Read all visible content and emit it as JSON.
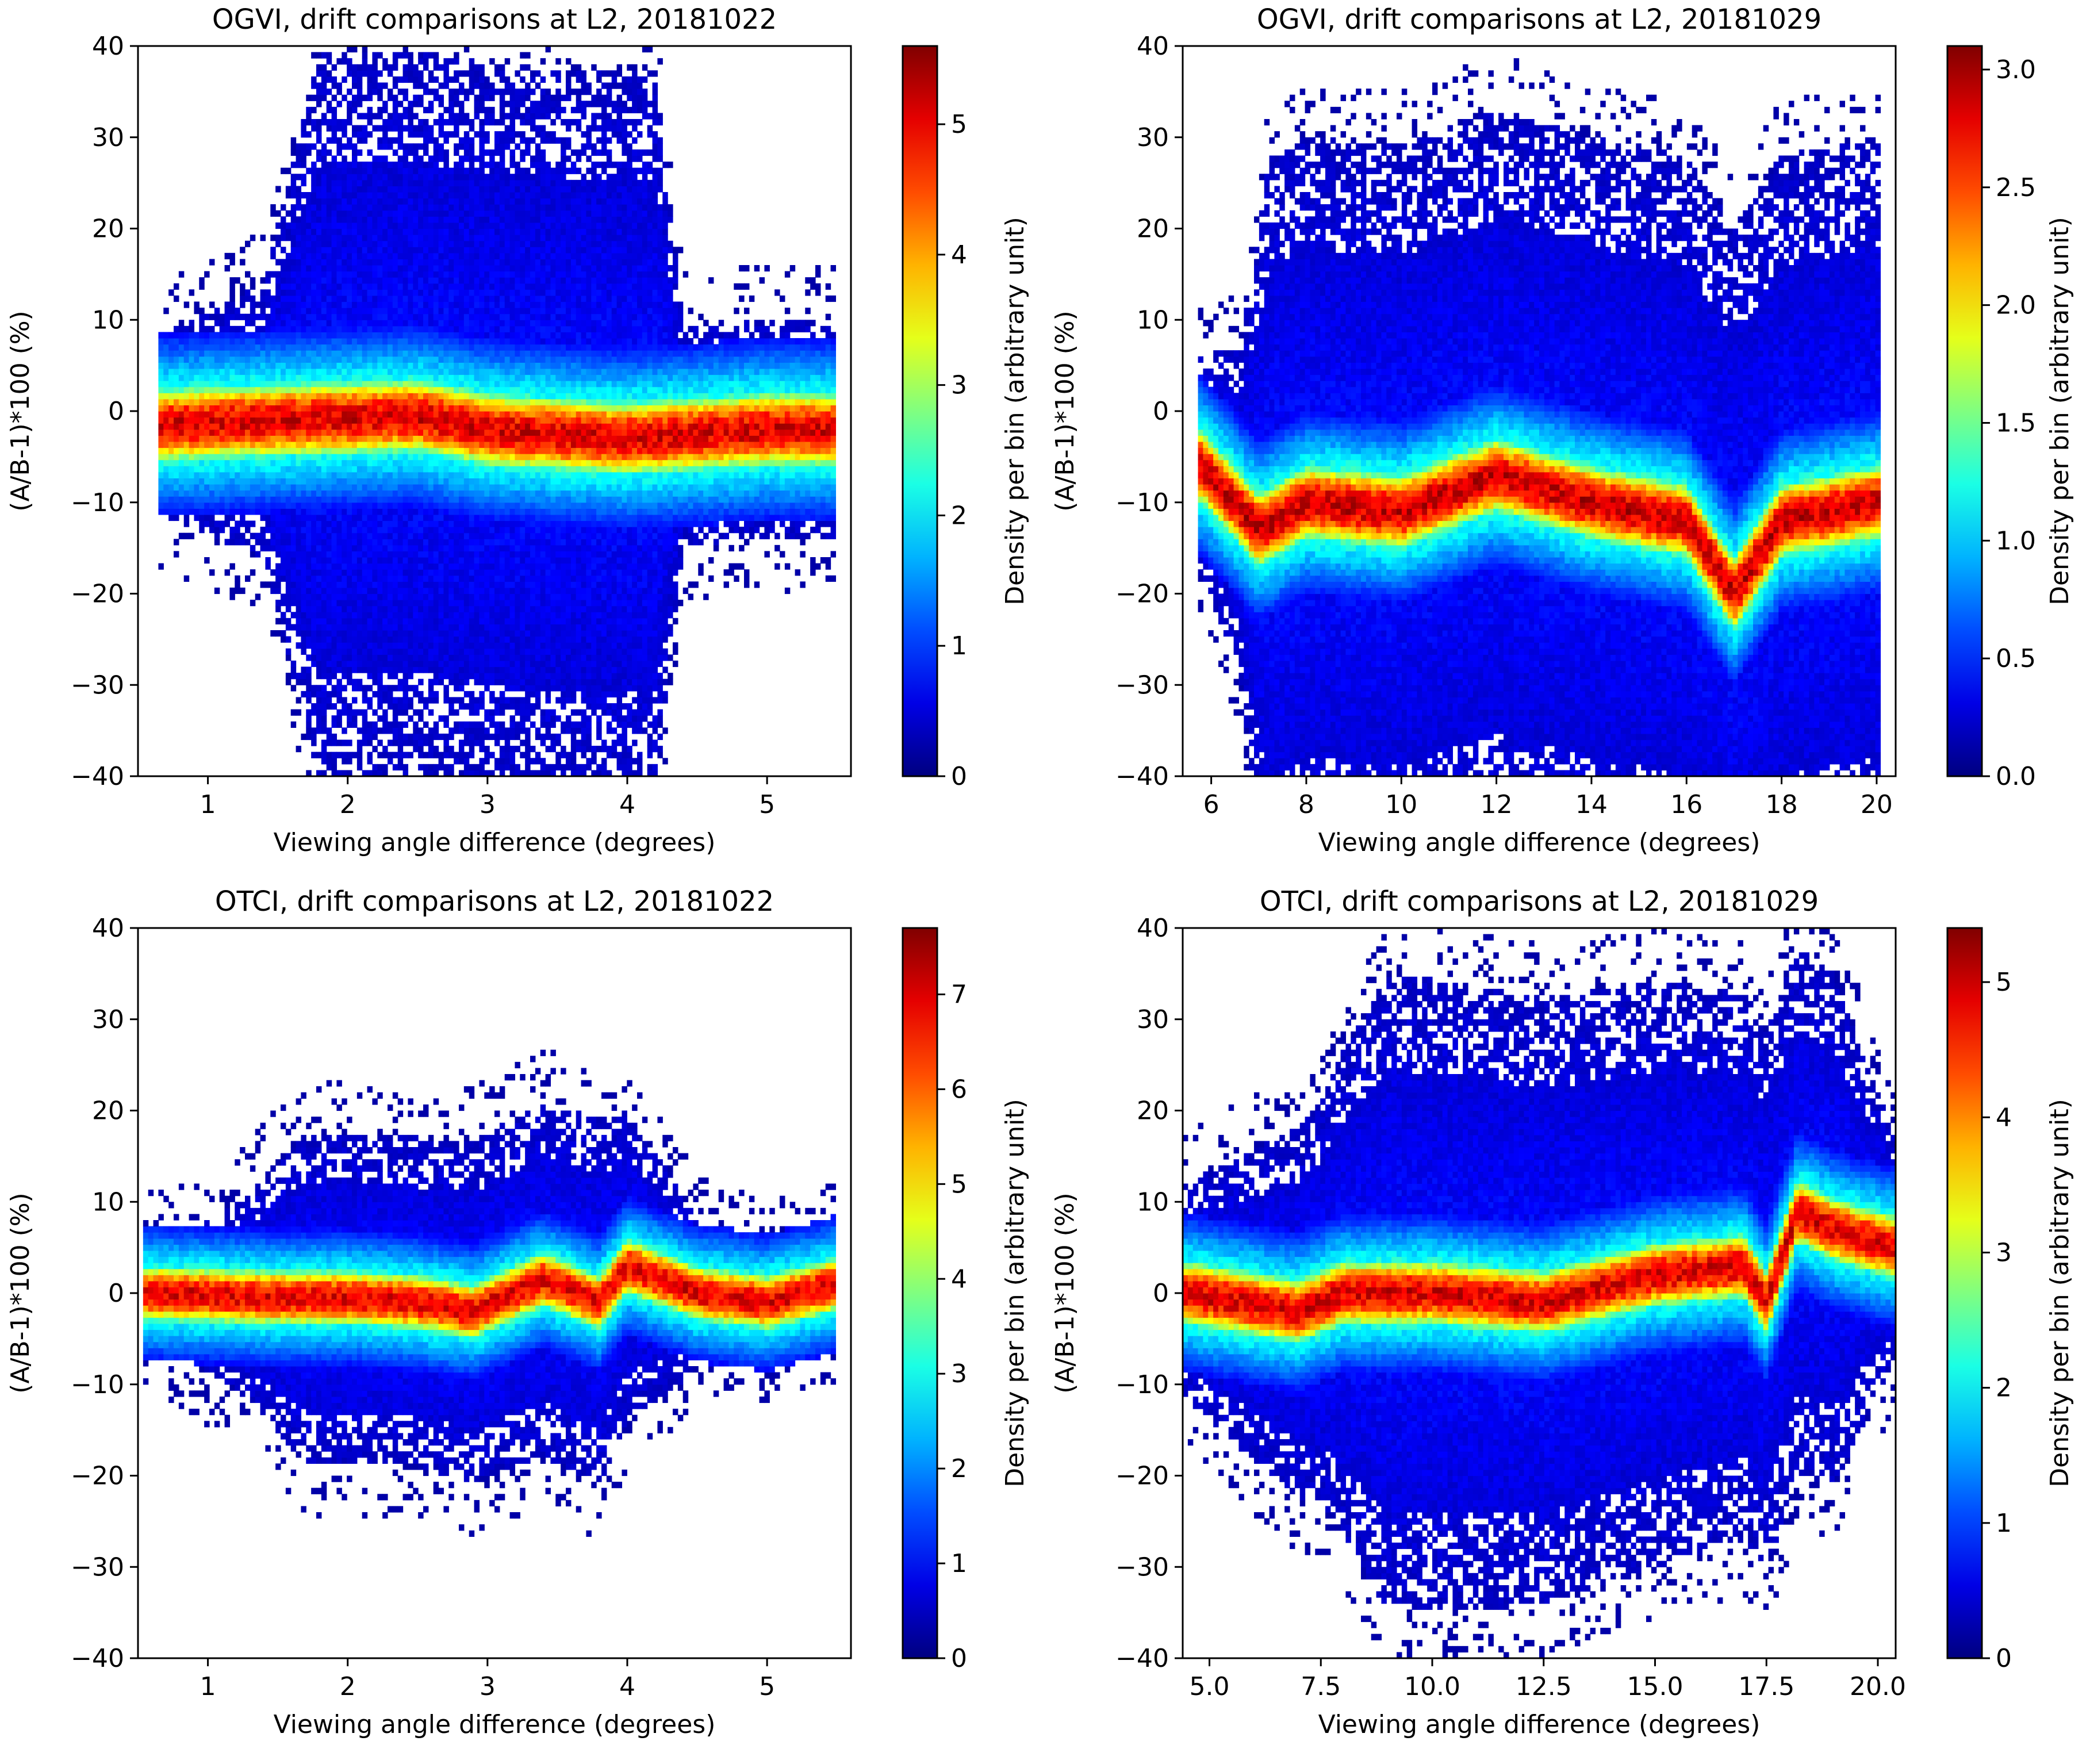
{
  "chart_data": [
    {
      "type": "heatmap",
      "title": "OGVI, drift comparisons at L2, 20181022",
      "xlabel": "Viewing angle difference (degrees)",
      "ylabel": "(A/B-1)*100 (%)",
      "colorbar_label": "Density per bin (arbitrary unit)",
      "xlim": [
        0.5,
        5.6
      ],
      "ylim": [
        -40,
        40
      ],
      "xticks": [
        "1",
        "2",
        "3",
        "4",
        "5"
      ],
      "xtick_values": [
        1,
        2,
        3,
        4,
        5
      ],
      "yticks": [
        "−40",
        "−30",
        "−20",
        "−10",
        "0",
        "10",
        "20",
        "30",
        "40"
      ],
      "ytick_values": [
        -40,
        -30,
        -20,
        -10,
        0,
        10,
        20,
        30,
        40
      ],
      "colorbar_range": [
        0,
        5.6
      ],
      "colorbar_ticks": [
        "0",
        "1",
        "2",
        "3",
        "4",
        "5"
      ],
      "colorbar_tick_values": [
        0,
        1,
        2,
        3,
        4,
        5
      ],
      "data_extent_x": [
        0.65,
        5.5
      ],
      "core_center": [
        {
          "x": 0.7,
          "y": -1.5
        },
        {
          "x": 1.5,
          "y": -1
        },
        {
          "x": 2.5,
          "y": -0.5
        },
        {
          "x": 3.0,
          "y": -2
        },
        {
          "x": 3.5,
          "y": -2.5
        },
        {
          "x": 4.0,
          "y": -3
        },
        {
          "x": 4.5,
          "y": -2.5
        },
        {
          "x": 5.0,
          "y": -2
        },
        {
          "x": 5.5,
          "y": -2
        }
      ],
      "core_halfwidth": 4,
      "peak_density": 5.5,
      "spread": [
        {
          "x": 0.7,
          "y": 10
        },
        {
          "x": 1.4,
          "y": 15
        },
        {
          "x": 1.8,
          "y": 40
        },
        {
          "x": 2.9,
          "y": 40
        },
        {
          "x": 4.2,
          "y": 40
        },
        {
          "x": 4.4,
          "y": 12
        },
        {
          "x": 5.5,
          "y": 12
        }
      ]
    },
    {
      "type": "heatmap",
      "title": "OGVI, drift comparisons at L2, 20181029",
      "xlabel": "Viewing angle difference (degrees)",
      "ylabel": "(A/B-1)*100 (%)",
      "colorbar_label": "Density per bin (arbitrary unit)",
      "xlim": [
        5.4,
        20.4
      ],
      "ylim": [
        -40,
        40
      ],
      "xticks": [
        "6",
        "8",
        "10",
        "12",
        "14",
        "16",
        "18",
        "20"
      ],
      "xtick_values": [
        6,
        8,
        10,
        12,
        14,
        16,
        18,
        20
      ],
      "yticks": [
        "−40",
        "−30",
        "−20",
        "−10",
        "0",
        "10",
        "20",
        "30",
        "40"
      ],
      "ytick_values": [
        -40,
        -30,
        -20,
        -10,
        0,
        10,
        20,
        30,
        40
      ],
      "colorbar_range": [
        0,
        3.1
      ],
      "colorbar_ticks": [
        "0.0",
        "0.5",
        "1.0",
        "1.5",
        "2.0",
        "2.5",
        "3.0"
      ],
      "colorbar_tick_values": [
        0,
        0.5,
        1.0,
        1.5,
        2.0,
        2.5,
        3.0
      ],
      "data_extent_x": [
        5.7,
        20.1
      ],
      "core_center": [
        {
          "x": 5.8,
          "y": -6
        },
        {
          "x": 7.0,
          "y": -13
        },
        {
          "x": 8.0,
          "y": -10
        },
        {
          "x": 10.0,
          "y": -11
        },
        {
          "x": 12.0,
          "y": -7
        },
        {
          "x": 14.0,
          "y": -10
        },
        {
          "x": 16.0,
          "y": -12
        },
        {
          "x": 17.0,
          "y": -20
        },
        {
          "x": 18.0,
          "y": -12
        },
        {
          "x": 20.0,
          "y": -10
        }
      ],
      "core_halfwidth": 4,
      "peak_density": 3.1,
      "spread": [
        {
          "x": 5.8,
          "y": 12
        },
        {
          "x": 6.6,
          "y": 18
        },
        {
          "x": 7.2,
          "y": 40
        },
        {
          "x": 9.0,
          "y": 40
        },
        {
          "x": 19.5,
          "y": 40
        },
        {
          "x": 20.1,
          "y": 40
        }
      ]
    },
    {
      "type": "heatmap",
      "title": "OTCI, drift comparisons at L2, 20181022",
      "xlabel": "Viewing angle difference (degrees)",
      "ylabel": "(A/B-1)*100 (%)",
      "colorbar_label": "Density per bin (arbitrary unit)",
      "xlim": [
        0.5,
        5.6
      ],
      "ylim": [
        -40,
        40
      ],
      "xticks": [
        "1",
        "2",
        "3",
        "4",
        "5"
      ],
      "xtick_values": [
        1,
        2,
        3,
        4,
        5
      ],
      "yticks": [
        "−40",
        "−30",
        "−20",
        "−10",
        "0",
        "10",
        "20",
        "30",
        "40"
      ],
      "ytick_values": [
        -40,
        -30,
        -20,
        -10,
        0,
        10,
        20,
        30,
        40
      ],
      "colorbar_range": [
        0,
        7.7
      ],
      "colorbar_ticks": [
        "0",
        "1",
        "2",
        "3",
        "4",
        "5",
        "6",
        "7"
      ],
      "colorbar_tick_values": [
        0,
        1,
        2,
        3,
        4,
        5,
        6,
        7
      ],
      "data_extent_x": [
        0.55,
        5.5
      ],
      "core_center": [
        {
          "x": 0.6,
          "y": 0
        },
        {
          "x": 1.5,
          "y": -0.5
        },
        {
          "x": 2.0,
          "y": -0.5
        },
        {
          "x": 2.5,
          "y": -1
        },
        {
          "x": 2.9,
          "y": -2
        },
        {
          "x": 3.4,
          "y": 1.5
        },
        {
          "x": 3.8,
          "y": -1
        },
        {
          "x": 4.0,
          "y": 3
        },
        {
          "x": 4.5,
          "y": 0
        },
        {
          "x": 5.0,
          "y": -1
        },
        {
          "x": 5.5,
          "y": 1
        }
      ],
      "core_halfwidth": 3,
      "peak_density": 7.5,
      "spread": [
        {
          "x": 0.6,
          "y": 5
        },
        {
          "x": 1.2,
          "y": 10
        },
        {
          "x": 1.7,
          "y": 18
        },
        {
          "x": 2.5,
          "y": 18
        },
        {
          "x": 3.8,
          "y": 20
        },
        {
          "x": 4.3,
          "y": 12
        },
        {
          "x": 4.6,
          "y": 6
        },
        {
          "x": 5.5,
          "y": 5
        }
      ]
    },
    {
      "type": "heatmap",
      "title": "OTCI, drift comparisons at L2, 20181029",
      "xlabel": "Viewing angle difference (degrees)",
      "ylabel": "(A/B-1)*100 (%)",
      "colorbar_label": "Density per bin (arbitrary unit)",
      "xlim": [
        4.4,
        20.4
      ],
      "ylim": [
        -40,
        40
      ],
      "xticks": [
        "5.0",
        "7.5",
        "10.0",
        "12.5",
        "15.0",
        "17.5",
        "20.0"
      ],
      "xtick_values": [
        5.0,
        7.5,
        10.0,
        12.5,
        15.0,
        17.5,
        20.0
      ],
      "yticks": [
        "−40",
        "−30",
        "−20",
        "−10",
        "0",
        "10",
        "20",
        "30",
        "40"
      ],
      "ytick_values": [
        -40,
        -30,
        -20,
        -10,
        0,
        10,
        20,
        30,
        40
      ],
      "colorbar_range": [
        0,
        5.4
      ],
      "colorbar_ticks": [
        "0",
        "1",
        "2",
        "3",
        "4",
        "5"
      ],
      "colorbar_tick_values": [
        0,
        1,
        2,
        3,
        4,
        5
      ],
      "data_extent_x": [
        4.45,
        20.4
      ],
      "core_center": [
        {
          "x": 4.5,
          "y": 0
        },
        {
          "x": 7.0,
          "y": -2
        },
        {
          "x": 8.0,
          "y": 0
        },
        {
          "x": 10.0,
          "y": 0
        },
        {
          "x": 12.5,
          "y": -1
        },
        {
          "x": 15.0,
          "y": 2
        },
        {
          "x": 17.0,
          "y": 3
        },
        {
          "x": 17.5,
          "y": -1
        },
        {
          "x": 18.2,
          "y": 9
        },
        {
          "x": 19.0,
          "y": 7
        },
        {
          "x": 20.4,
          "y": 5
        }
      ],
      "core_halfwidth": 3.5,
      "peak_density": 5.3,
      "spread": [
        {
          "x": 4.5,
          "y": 12
        },
        {
          "x": 7.5,
          "y": 22
        },
        {
          "x": 9.0,
          "y": 35
        },
        {
          "x": 15.0,
          "y": 32
        },
        {
          "x": 19.0,
          "y": 28
        },
        {
          "x": 20.4,
          "y": 12
        }
      ]
    }
  ]
}
